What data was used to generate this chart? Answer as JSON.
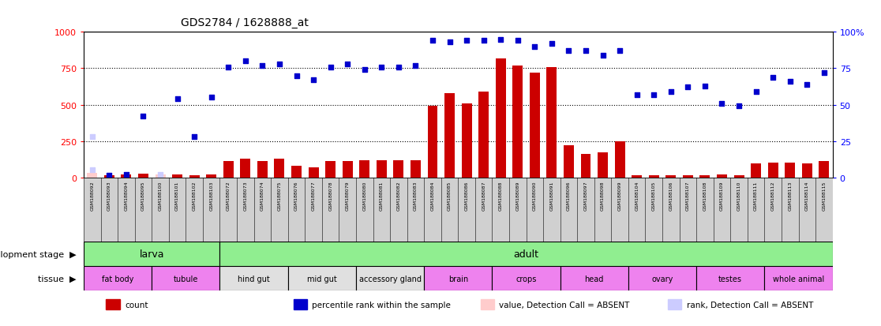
{
  "title": "GDS2784 / 1628888_at",
  "samples": [
    "GSM188092",
    "GSM188093",
    "GSM188094",
    "GSM188095",
    "GSM188100",
    "GSM188101",
    "GSM188102",
    "GSM188103",
    "GSM188072",
    "GSM188073",
    "GSM188074",
    "GSM188075",
    "GSM188076",
    "GSM188077",
    "GSM188078",
    "GSM188079",
    "GSM188080",
    "GSM188081",
    "GSM188082",
    "GSM188083",
    "GSM188084",
    "GSM188085",
    "GSM188086",
    "GSM188087",
    "GSM188088",
    "GSM188089",
    "GSM188090",
    "GSM188091",
    "GSM188096",
    "GSM188097",
    "GSM188098",
    "GSM188099",
    "GSM188104",
    "GSM188105",
    "GSM188106",
    "GSM188107",
    "GSM188108",
    "GSM188109",
    "GSM188110",
    "GSM188111",
    "GSM188112",
    "GSM188113",
    "GSM188114",
    "GSM188115"
  ],
  "counts": [
    30,
    15,
    20,
    25,
    20,
    20,
    15,
    20,
    110,
    130,
    110,
    130,
    80,
    70,
    110,
    110,
    120,
    115,
    115,
    120,
    490,
    580,
    510,
    590,
    820,
    770,
    720,
    760,
    220,
    160,
    170,
    250,
    15,
    15,
    15,
    12,
    15,
    20,
    15,
    95,
    100,
    100,
    95,
    110
  ],
  "percentile_ranks": [
    50,
    15,
    20,
    420,
    20,
    540,
    280,
    550,
    760,
    800,
    770,
    780,
    700,
    670,
    760,
    780,
    740,
    760,
    760,
    770,
    940,
    930,
    940,
    940,
    950,
    940,
    900,
    920,
    870,
    870,
    840,
    870,
    570,
    570,
    590,
    620,
    630,
    510,
    490,
    590,
    690,
    660,
    640,
    720
  ],
  "absent_flags": [
    true,
    false,
    false,
    false,
    true,
    false,
    false,
    false,
    false,
    false,
    false,
    false,
    false,
    false,
    false,
    false,
    false,
    false,
    false,
    false,
    false,
    false,
    false,
    false,
    false,
    false,
    false,
    false,
    false,
    false,
    false,
    false,
    false,
    false,
    false,
    false,
    false,
    false,
    false,
    false,
    false,
    false,
    false,
    false
  ],
  "absent_rank_vals": [
    280,
    0,
    0,
    0,
    0,
    0,
    0,
    0,
    0,
    0,
    0,
    0,
    0,
    0,
    0,
    0,
    0,
    0,
    0,
    0,
    0,
    0,
    0,
    0,
    0,
    0,
    0,
    0,
    0,
    0,
    0,
    0,
    0,
    0,
    0,
    0,
    0,
    0,
    0,
    0,
    0,
    0,
    0,
    0
  ],
  "development_stages": [
    {
      "label": "larva",
      "start": 0,
      "end": 8,
      "color": "#90EE90"
    },
    {
      "label": "adult",
      "start": 8,
      "end": 44,
      "color": "#90EE90"
    }
  ],
  "tissues": [
    {
      "label": "fat body",
      "start": 0,
      "end": 4,
      "color": "#EE82EE"
    },
    {
      "label": "tubule",
      "start": 4,
      "end": 8,
      "color": "#EE82EE"
    },
    {
      "label": "hind gut",
      "start": 8,
      "end": 12,
      "color": "#E0E0E0"
    },
    {
      "label": "mid gut",
      "start": 12,
      "end": 16,
      "color": "#E0E0E0"
    },
    {
      "label": "accessory gland",
      "start": 16,
      "end": 20,
      "color": "#E0E0E0"
    },
    {
      "label": "brain",
      "start": 20,
      "end": 24,
      "color": "#EE82EE"
    },
    {
      "label": "crops",
      "start": 24,
      "end": 28,
      "color": "#EE82EE"
    },
    {
      "label": "head",
      "start": 28,
      "end": 32,
      "color": "#EE82EE"
    },
    {
      "label": "ovary",
      "start": 32,
      "end": 36,
      "color": "#EE82EE"
    },
    {
      "label": "testes",
      "start": 36,
      "end": 40,
      "color": "#EE82EE"
    },
    {
      "label": "whole animal",
      "start": 40,
      "end": 44,
      "color": "#EE82EE"
    }
  ],
  "bar_color": "#CC0000",
  "absent_bar_color": "#FFCCCC",
  "scatter_color": "#0000CC",
  "absent_rank_color": "#CCCCFF",
  "ylim_left": [
    0,
    1000
  ],
  "yticks_left": [
    0,
    250,
    500,
    750,
    1000
  ],
  "yticks_right": [
    0,
    25,
    50,
    75,
    100
  ],
  "dotted_lines": [
    250,
    500,
    750
  ],
  "legend_items": [
    {
      "label": "count",
      "color": "#CC0000"
    },
    {
      "label": "percentile rank within the sample",
      "color": "#0000CC"
    },
    {
      "label": "value, Detection Call = ABSENT",
      "color": "#FFCCCC"
    },
    {
      "label": "rank, Detection Call = ABSENT",
      "color": "#CCCCFF"
    }
  ]
}
